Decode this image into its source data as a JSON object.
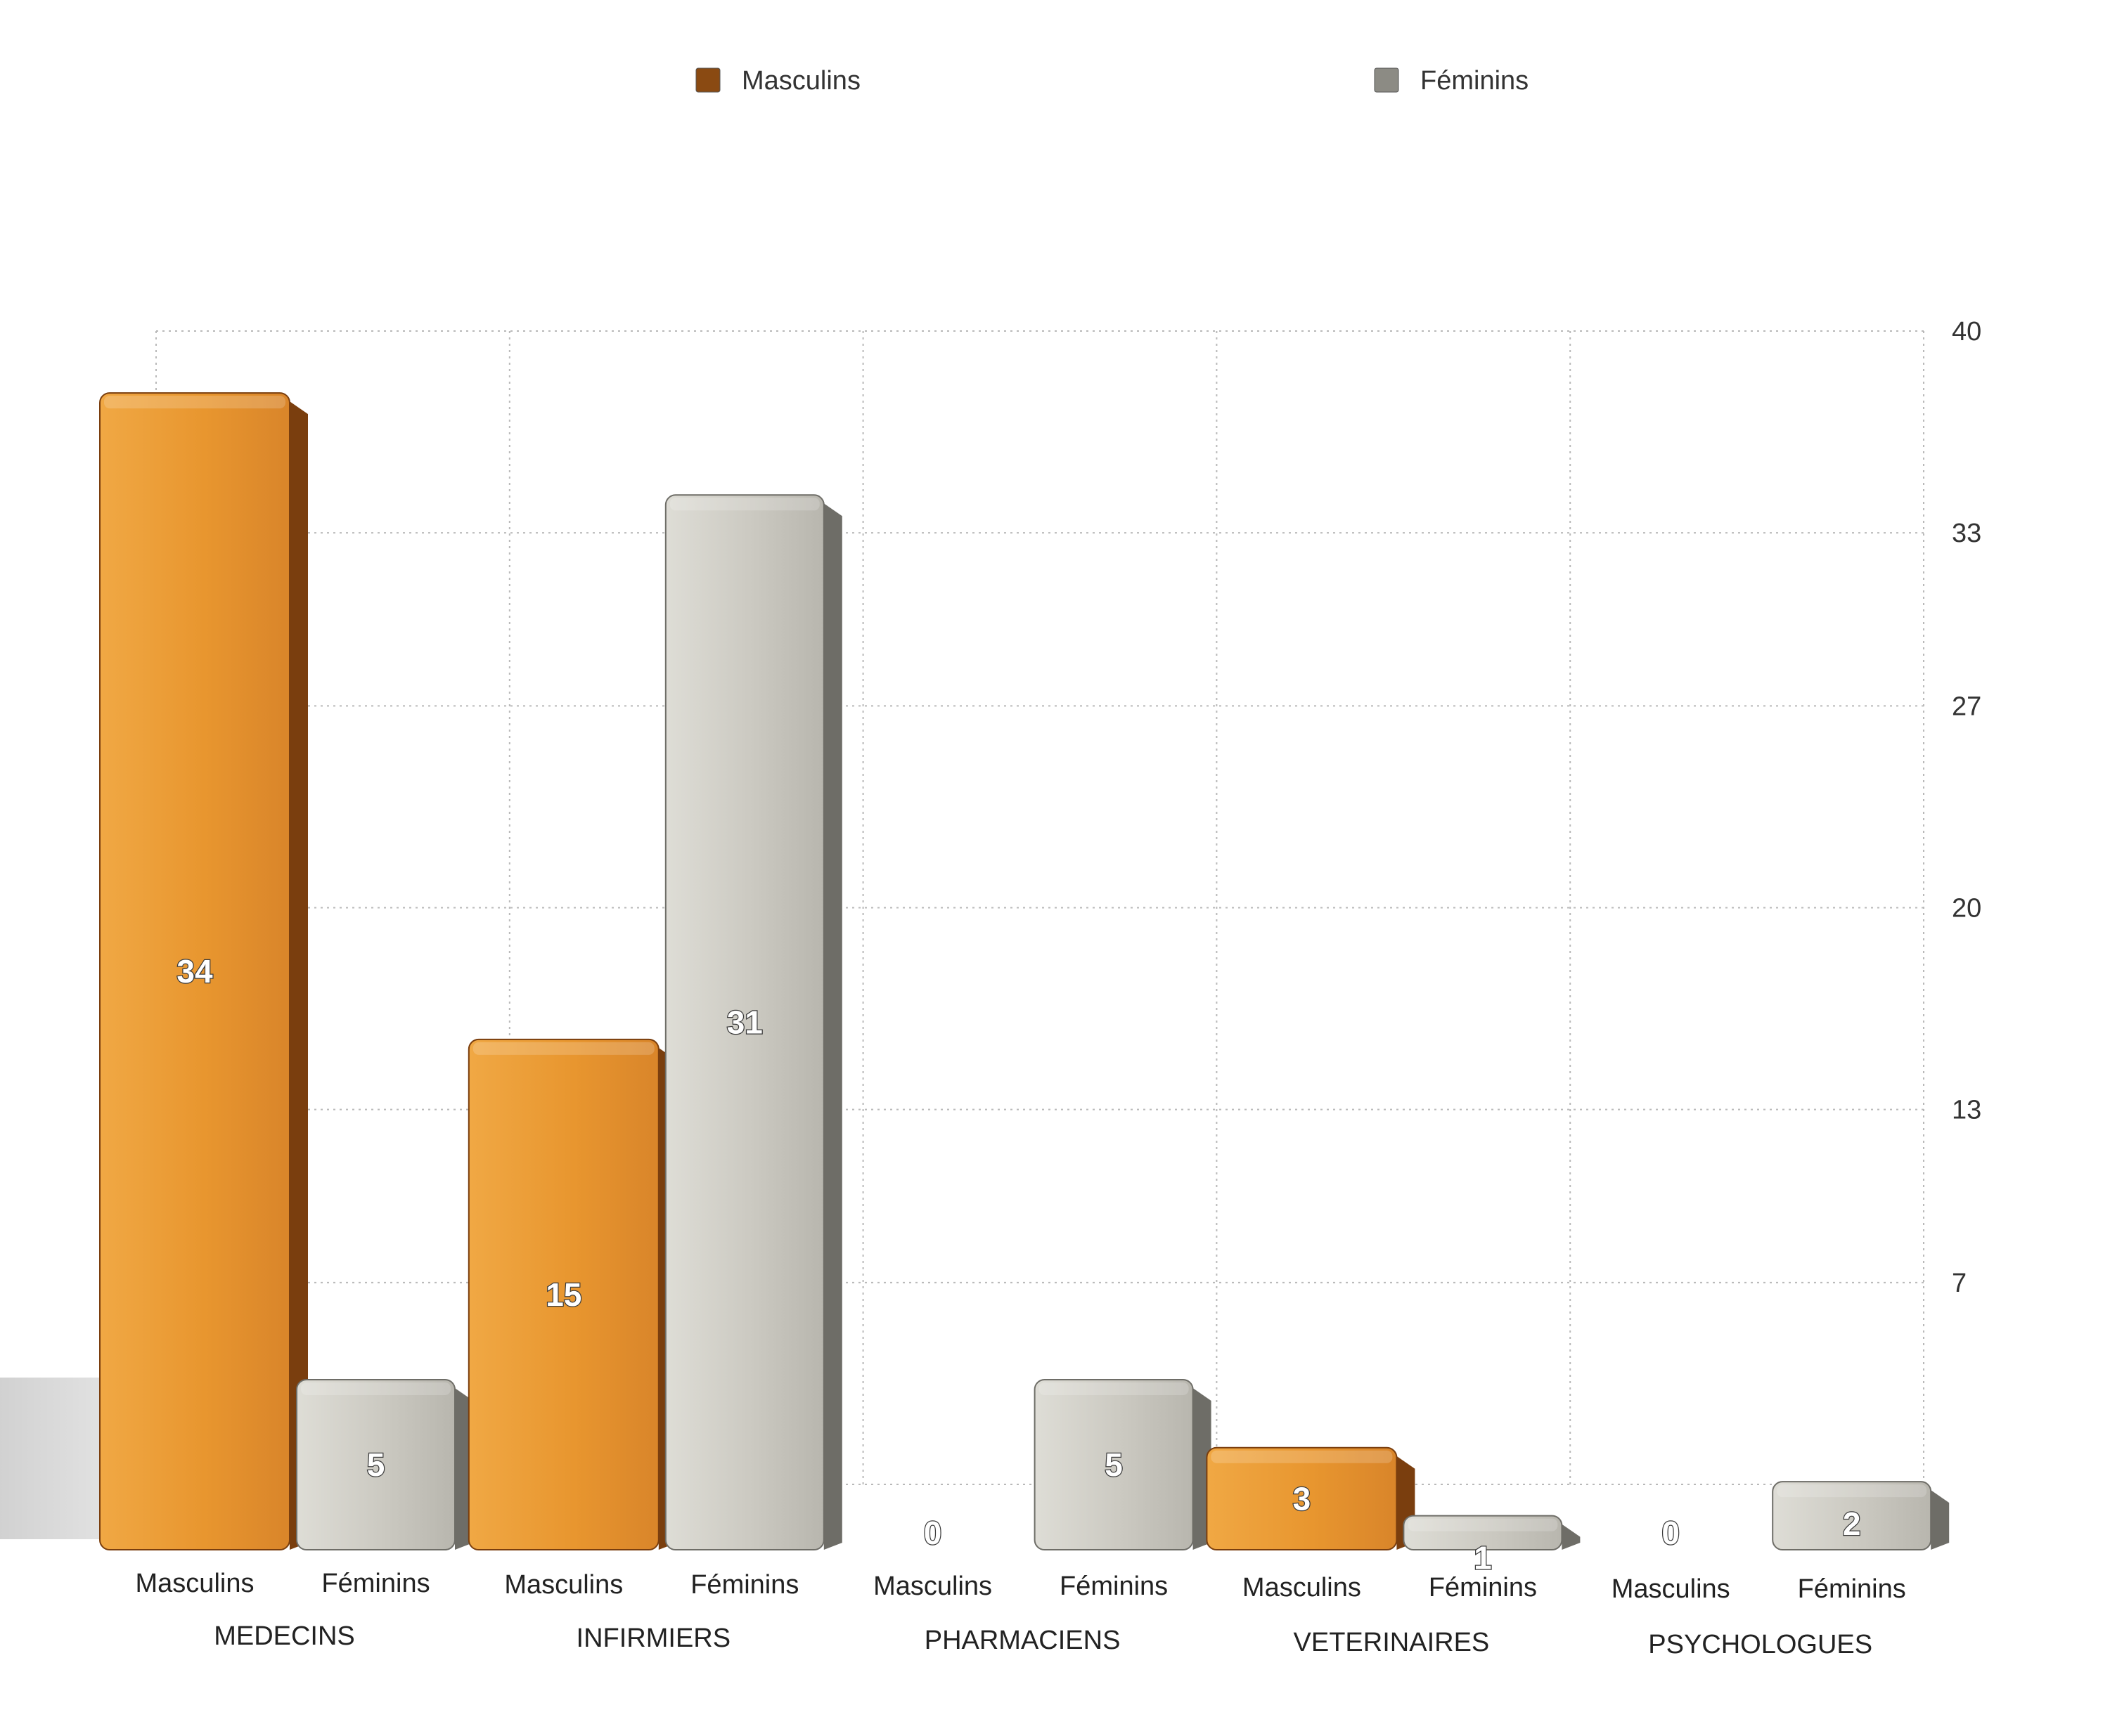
{
  "chart_data": {
    "type": "bar",
    "title": "",
    "xlabel": "",
    "ylabel": "",
    "categories": [
      "MEDECINS",
      "INFIRMIERS",
      "PHARMACIENS",
      "VETERINAIRES",
      "PSYCHOLOGUES"
    ],
    "series": [
      {
        "name": "Masculins",
        "values": [
          34,
          15,
          0,
          3,
          0
        ],
        "color": "#e8962f",
        "legend_color": "#8a4a12",
        "side_color": "#7a3e0e"
      },
      {
        "name": "Féminins",
        "values": [
          5,
          31,
          5,
          1,
          2
        ],
        "color": "#c9c7bf",
        "legend_color": "#8c8b84",
        "side_color": "#6e6d67"
      }
    ],
    "y_ticks": [
      "7",
      "13",
      "20",
      "27",
      "33",
      "40"
    ],
    "ylim": [
      0,
      40
    ],
    "y_axis_position": "right",
    "grid": true,
    "grid_style": "dotted",
    "legend_position": "top",
    "bar_sub_labels": [
      "Masculins",
      "Féminins"
    ],
    "data_labels": true
  }
}
